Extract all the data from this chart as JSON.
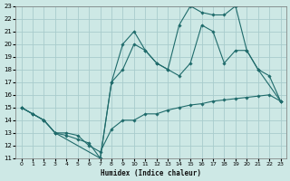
{
  "xlabel": "Humidex (Indice chaleur)",
  "bg_color": "#cde8e5",
  "grid_color": "#a8cccc",
  "line_color": "#1f6b6b",
  "xlim": [
    -0.5,
    23.5
  ],
  "ylim": [
    11,
    23
  ],
  "xticks": [
    0,
    1,
    2,
    3,
    4,
    5,
    6,
    7,
    8,
    9,
    10,
    11,
    12,
    13,
    14,
    15,
    16,
    17,
    18,
    19,
    20,
    21,
    22,
    23
  ],
  "yticks": [
    11,
    12,
    13,
    14,
    15,
    16,
    17,
    18,
    19,
    20,
    21,
    22,
    23
  ],
  "line1_x": [
    0,
    1,
    2,
    3,
    4,
    5,
    6,
    7,
    8,
    9,
    10,
    11,
    12,
    13,
    14,
    15,
    16,
    17,
    18,
    19,
    20,
    21,
    22,
    23
  ],
  "line1_y": [
    15.0,
    14.5,
    14.0,
    13.0,
    13.0,
    12.8,
    12.0,
    11.5,
    13.3,
    14.0,
    14.0,
    14.5,
    14.5,
    14.8,
    15.0,
    15.2,
    15.3,
    15.5,
    15.6,
    15.7,
    15.8,
    15.9,
    16.0,
    15.5
  ],
  "line2_x": [
    0,
    1,
    2,
    3,
    4,
    5,
    6,
    7,
    8,
    9,
    10,
    11,
    12,
    13,
    14,
    15,
    16,
    17,
    18,
    19,
    20,
    21,
    22,
    23
  ],
  "line2_y": [
    15.0,
    14.5,
    14.0,
    13.0,
    12.8,
    12.5,
    12.2,
    11.0,
    17.0,
    18.0,
    20.0,
    19.5,
    18.5,
    18.0,
    17.5,
    18.5,
    21.5,
    21.0,
    18.5,
    19.5,
    19.5,
    18.0,
    17.5,
    15.5
  ],
  "line3_x": [
    0,
    1,
    2,
    3,
    7,
    8,
    9,
    10,
    11,
    12,
    13,
    14,
    15,
    16,
    17,
    18,
    19,
    20,
    21,
    23
  ],
  "line3_y": [
    15.0,
    14.5,
    14.0,
    13.0,
    11.0,
    17.0,
    20.0,
    21.0,
    19.5,
    18.5,
    18.0,
    21.5,
    23.0,
    22.5,
    22.3,
    22.3,
    23.0,
    19.5,
    18.0,
    15.5
  ]
}
